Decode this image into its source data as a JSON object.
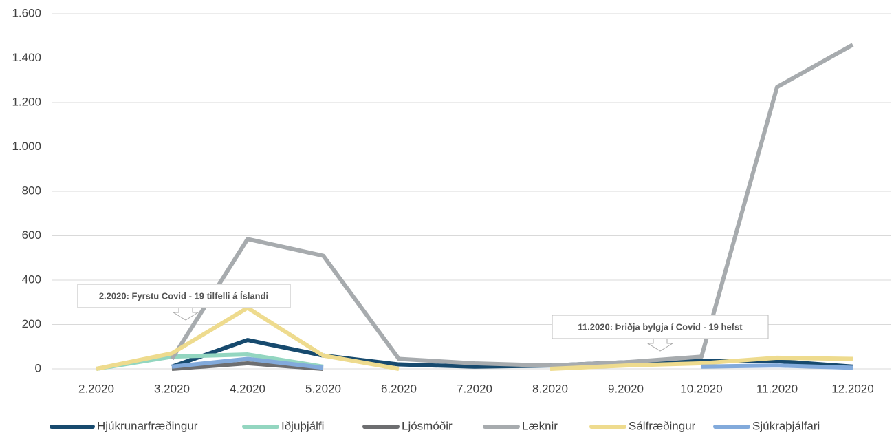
{
  "chart_data": {
    "type": "line",
    "categories": [
      "2.2020",
      "3.2020",
      "4.2020",
      "5.2020",
      "6.2020",
      "7.2020",
      "8.2020",
      "9.2020",
      "10.2020",
      "11.2020",
      "12.2020"
    ],
    "series": [
      {
        "name": "Hjúkrunarfræðingur",
        "color": "#174a6e",
        "values": [
          null,
          10,
          130,
          60,
          20,
          10,
          15,
          30,
          35,
          35,
          10
        ]
      },
      {
        "name": "Iðjuþjálfi",
        "color": "#93d6c0",
        "values": [
          0,
          55,
          65,
          10,
          null,
          null,
          null,
          null,
          null,
          null,
          null
        ]
      },
      {
        "name": "Ljósmóðir",
        "color": "#6d6e70",
        "values": [
          null,
          0,
          25,
          0,
          null,
          null,
          null,
          null,
          null,
          null,
          null
        ]
      },
      {
        "name": "Læknir",
        "color": "#a7abae",
        "values": [
          null,
          45,
          585,
          510,
          45,
          25,
          15,
          30,
          55,
          1270,
          1460
        ]
      },
      {
        "name": "Sálfræðingur",
        "color": "#eedb8e",
        "values": [
          0,
          70,
          275,
          60,
          0,
          null,
          0,
          15,
          25,
          50,
          45
        ]
      },
      {
        "name": "Sjúkraþjálfari",
        "color": "#82aadb",
        "values": [
          null,
          10,
          45,
          5,
          null,
          null,
          null,
          null,
          10,
          15,
          5
        ]
      }
    ],
    "ylim": [
      0,
      1600
    ],
    "yticks": [
      0,
      200,
      400,
      600,
      800,
      {
        "value": 1000,
        "label": "1.000"
      },
      {
        "value": 1200,
        "label": "1.200"
      },
      {
        "value": 1400,
        "label": "1.400"
      },
      {
        "value": 1600,
        "label": "1.600"
      }
    ],
    "grid": true,
    "annotations": [
      "2.2020: Fyrstu Covid - 19 tilfelli á Íslandi",
      "11.2020: Þriðja bylgja í Covid - 19 hefst"
    ]
  }
}
